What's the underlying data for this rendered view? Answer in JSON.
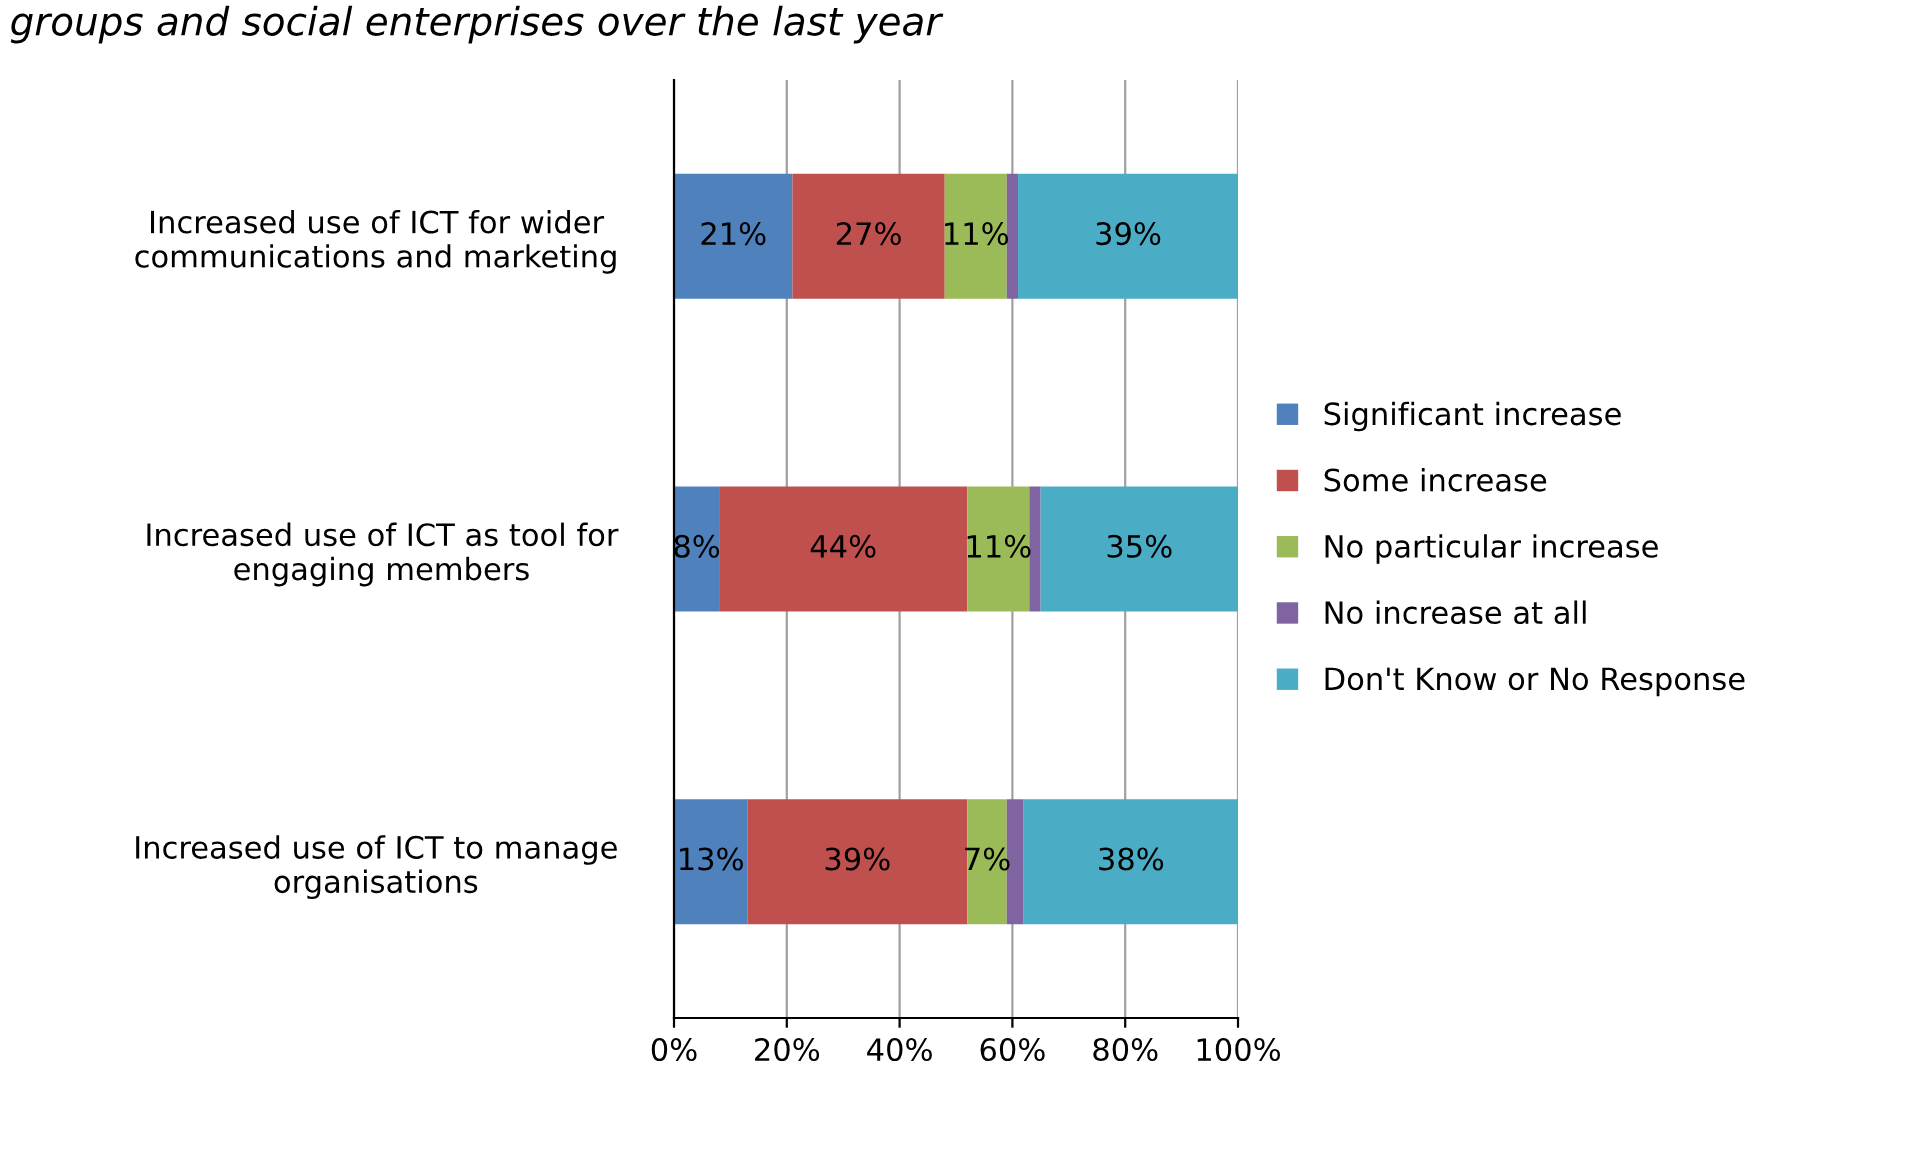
{
  "chart_data": {
    "type": "bar",
    "orientation": "horizontal",
    "stacked": true,
    "title": "groups and social enterprises over the last year",
    "categories": [
      "Increased use of ICT for wider communications and marketing",
      "Increased use of ICT as tool for engaging members",
      "Increased use of ICT to manage organisations"
    ],
    "series": [
      {
        "name": "Significant increase",
        "color": "#4f81bd",
        "values": [
          21,
          8,
          13
        ],
        "value_labels": [
          "21%",
          "8%",
          "13%"
        ]
      },
      {
        "name": "Some increase",
        "color": "#c0504d",
        "values": [
          27,
          44,
          39
        ],
        "value_labels": [
          "27%",
          "44%",
          "39%"
        ]
      },
      {
        "name": "No particular increase",
        "color": "#9bbb59",
        "values": [
          11,
          11,
          7
        ],
        "value_labels": [
          "11%",
          "11%",
          "7%"
        ]
      },
      {
        "name": "No increase at all",
        "color": "#8064a2",
        "values": [
          2,
          2,
          3
        ],
        "value_labels": [
          null,
          null,
          null
        ]
      },
      {
        "name": "Don't Know or No Response",
        "color": "#4bacc6",
        "values": [
          39,
          35,
          38
        ],
        "value_labels": [
          "39%",
          "35%",
          "38%"
        ]
      }
    ],
    "xlim": [
      0,
      100
    ],
    "xticks": [
      {
        "value": 0,
        "label": "0%"
      },
      {
        "value": 20,
        "label": "20%"
      },
      {
        "value": 40,
        "label": "40%"
      },
      {
        "value": 60,
        "label": "60%"
      },
      {
        "value": 80,
        "label": "80%"
      },
      {
        "value": 100,
        "label": "100%"
      }
    ],
    "grid": "x",
    "legend": "right"
  }
}
